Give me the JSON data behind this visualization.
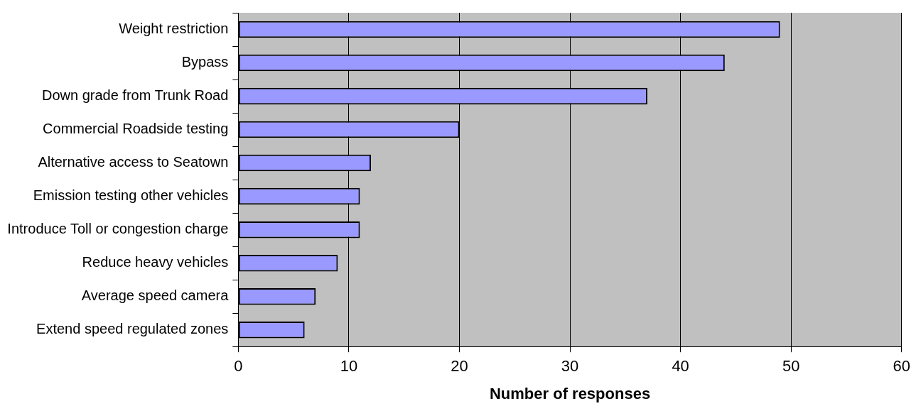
{
  "chart_data": {
    "type": "bar",
    "orientation": "horizontal",
    "xlabel": "Number of responses",
    "categories": [
      "Weight restriction",
      "Bypass",
      "Down grade from Trunk Road",
      "Commercial Roadside testing",
      "Alternative access to Seatown",
      "Emission testing other vehicles",
      "Introduce Toll or congestion charge",
      "Reduce heavy vehicles",
      "Average speed camera",
      "Extend speed regulated zones"
    ],
    "values": [
      49,
      44,
      37,
      20,
      12,
      11,
      11,
      9,
      7,
      6
    ],
    "color": "#9999ff",
    "xlim": [
      0,
      60
    ],
    "xticks": [
      0,
      10,
      20,
      30,
      40,
      50,
      60
    ],
    "grid": "x",
    "legend": false
  }
}
